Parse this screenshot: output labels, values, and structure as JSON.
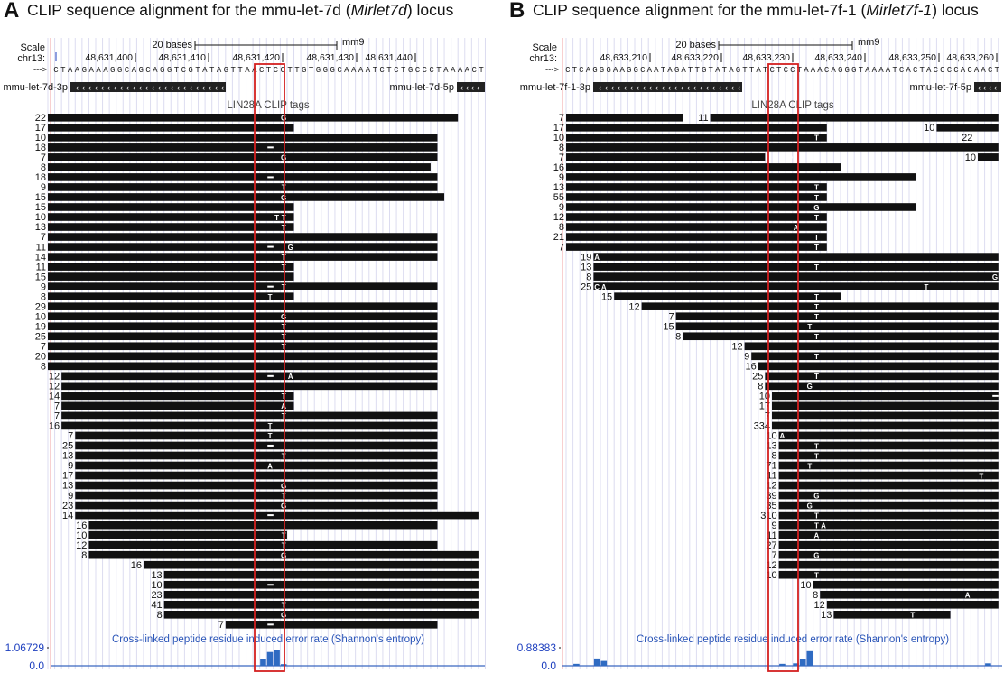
{
  "panels": [
    {
      "letter": "A",
      "title_pre": "CLIP sequence alignment for the mmu-let-7d (",
      "title_gene": "Mirlet7d",
      "title_post": ") locus",
      "scale_label": "Scale",
      "chrom_label": "chr13:",
      "bases_label": "20 bases",
      "assembly": "mm9",
      "positions": [
        "48,631,400",
        "48,631,410",
        "48,631,420",
        "48,631,430",
        "48,631,440"
      ],
      "sequence": "CTAAGAAAGGCAGCAGGTCGTATAGTTAACTCCTTGTGGGCAAAATCTCTGCCCTAAAACT",
      "gene_left": "mmu-let-7d-3p",
      "gene_right": "mmu-let-7d-5p",
      "track_title": "LIN28A CLIP tags",
      "entropy_max": "1.06729",
      "entropy_min": "0.0",
      "entropy_title": "Cross-linked peptide residue induced error rate (Shannon's entropy)",
      "reads": [
        {
          "n": "22",
          "s": 0,
          "e": 60,
          "m": [
            [
              34,
              "G"
            ]
          ]
        },
        {
          "n": "17",
          "s": 0,
          "e": 36,
          "m": []
        },
        {
          "n": "10",
          "s": 0,
          "e": 57,
          "m": []
        },
        {
          "n": "18",
          "s": 0,
          "e": 57,
          "m": [
            [
              32,
              "-"
            ]
          ]
        },
        {
          "n": "7",
          "s": 0,
          "e": 57,
          "m": [
            [
              34,
              "G"
            ]
          ]
        },
        {
          "n": "8",
          "s": 0,
          "e": 56,
          "m": []
        },
        {
          "n": "18",
          "s": 0,
          "e": 57,
          "m": [
            [
              32,
              "-"
            ]
          ]
        },
        {
          "n": "9",
          "s": 0,
          "e": 57,
          "m": [
            [
              34,
              "T"
            ]
          ]
        },
        {
          "n": "15",
          "s": 0,
          "e": 58,
          "m": [
            [
              34,
              "G"
            ]
          ]
        },
        {
          "n": "15",
          "s": 0,
          "e": 36,
          "m": []
        },
        {
          "n": "10",
          "s": 0,
          "e": 36,
          "m": [
            [
              33,
              "T"
            ],
            [
              34,
              "T"
            ]
          ]
        },
        {
          "n": "13",
          "s": 0,
          "e": 36,
          "m": [
            [
              34,
              "T"
            ]
          ]
        },
        {
          "n": "7",
          "s": 0,
          "e": 57,
          "m": []
        },
        {
          "n": "11",
          "s": 0,
          "e": 57,
          "m": [
            [
              32,
              "-"
            ],
            [
              35,
              "G"
            ]
          ]
        },
        {
          "n": "14",
          "s": 0,
          "e": 57,
          "m": [
            [
              34,
              "T"
            ]
          ]
        },
        {
          "n": "11",
          "s": 0,
          "e": 36,
          "m": [
            [
              34,
              "T"
            ]
          ]
        },
        {
          "n": "15",
          "s": 0,
          "e": 36,
          "m": []
        },
        {
          "n": "9",
          "s": 0,
          "e": 57,
          "m": [
            [
              32,
              "-"
            ],
            [
              34,
              "T"
            ]
          ]
        },
        {
          "n": "8",
          "s": 0,
          "e": 36,
          "m": [
            [
              32,
              "T"
            ]
          ]
        },
        {
          "n": "29",
          "s": 0,
          "e": 57,
          "m": []
        },
        {
          "n": "10",
          "s": 0,
          "e": 57,
          "m": [
            [
              34,
              "G"
            ]
          ]
        },
        {
          "n": "19",
          "s": 0,
          "e": 57,
          "m": [
            [
              34,
              "T"
            ]
          ]
        },
        {
          "n": "25",
          "s": 0,
          "e": 57,
          "m": [
            [
              34,
              "T"
            ]
          ]
        },
        {
          "n": "7",
          "s": 0,
          "e": 57,
          "m": [
            [
              34,
              "T"
            ]
          ]
        },
        {
          "n": "20",
          "s": 0,
          "e": 57,
          "m": []
        },
        {
          "n": "8",
          "s": 0,
          "e": 57,
          "m": []
        },
        {
          "n": "12",
          "s": 2,
          "e": 57,
          "m": [
            [
              32,
              "-"
            ],
            [
              35,
              "A"
            ]
          ]
        },
        {
          "n": "12",
          "s": 2,
          "e": 57,
          "m": []
        },
        {
          "n": "14",
          "s": 2,
          "e": 36,
          "m": [
            [
              34,
              "T"
            ]
          ]
        },
        {
          "n": "7",
          "s": 2,
          "e": 36,
          "m": [
            [
              34,
              "A"
            ]
          ]
        },
        {
          "n": "7",
          "s": 2,
          "e": 57,
          "m": [
            [
              34,
              "T"
            ]
          ]
        },
        {
          "n": "16",
          "s": 2,
          "e": 57,
          "m": [
            [
              32,
              "T"
            ]
          ]
        },
        {
          "n": "7",
          "s": 4,
          "e": 57,
          "m": [
            [
              32,
              "T"
            ]
          ]
        },
        {
          "n": "25",
          "s": 4,
          "e": 57,
          "m": [
            [
              32,
              "-"
            ]
          ]
        },
        {
          "n": "13",
          "s": 4,
          "e": 57,
          "m": [
            [
              34,
              "T"
            ]
          ]
        },
        {
          "n": "9",
          "s": 4,
          "e": 57,
          "m": [
            [
              32,
              "A"
            ]
          ]
        },
        {
          "n": "17",
          "s": 4,
          "e": 57,
          "m": []
        },
        {
          "n": "13",
          "s": 4,
          "e": 57,
          "m": [
            [
              34,
              "G"
            ]
          ]
        },
        {
          "n": "9",
          "s": 4,
          "e": 57,
          "m": [
            [
              34,
              "T"
            ]
          ]
        },
        {
          "n": "23",
          "s": 4,
          "e": 57,
          "m": [
            [
              34,
              "G"
            ]
          ]
        },
        {
          "n": "14",
          "s": 4,
          "e": 63,
          "m": [
            [
              32,
              "-"
            ]
          ]
        },
        {
          "n": "16",
          "s": 6,
          "e": 57,
          "m": []
        },
        {
          "n": "10",
          "s": 6,
          "e": 35,
          "m": [
            [
              34,
              "T"
            ]
          ]
        },
        {
          "n": "12",
          "s": 6,
          "e": 57,
          "m": [
            [
              34,
              "T"
            ]
          ]
        },
        {
          "n": "8",
          "s": 6,
          "e": 63,
          "m": [
            [
              34,
              "G"
            ]
          ]
        },
        {
          "n": "16",
          "s": 14,
          "e": 63,
          "m": []
        },
        {
          "n": "13",
          "s": 17,
          "e": 63,
          "m": []
        },
        {
          "n": "10",
          "s": 17,
          "e": 63,
          "m": [
            [
              32,
              "-"
            ]
          ]
        },
        {
          "n": "23",
          "s": 17,
          "e": 63,
          "m": []
        },
        {
          "n": "41",
          "s": 17,
          "e": 63,
          "m": [
            [
              34,
              "T"
            ]
          ]
        },
        {
          "n": "8",
          "s": 17,
          "e": 63,
          "m": [
            [
              34,
              "G"
            ]
          ]
        },
        {
          "n": "7",
          "s": 26,
          "e": 57,
          "m": [
            [
              32,
              "-"
            ]
          ]
        }
      ],
      "entropy": [
        [
          31,
          0.4
        ],
        [
          32,
          0.85
        ],
        [
          33,
          1.0
        ],
        [
          34,
          0.1
        ]
      ]
    },
    {
      "letter": "B",
      "title_pre": "CLIP sequence alignment for the mmu-let-7f-1 (",
      "title_gene": "Mirlet7f-1",
      "title_post": ") locus",
      "scale_label": "Scale",
      "chrom_label": "chr13:",
      "bases_label": "20 bases",
      "assembly": "mm9",
      "positions": [
        "48,633,210",
        "48,633,220",
        "48,633,230",
        "48,633,240",
        "48,633,250",
        "48,633,260"
      ],
      "sequence": "CTCAGGGAAGGCAATAGATTGTATAGTTATCTCCTAAACAGGGTAAAATCACTACCCCACAACT",
      "gene_left": "mmu-let-7f-1-3p",
      "gene_right": "mmu-let-7f-5p",
      "track_title": "LIN28A CLIP tags",
      "entropy_max": "0.88383",
      "entropy_min": "0.0",
      "entropy_title": "Cross-linked peptide residue induced error rate (Shannon's entropy)",
      "reads": [
        {
          "n": "7",
          "s": 0,
          "e": 17,
          "m": []
        },
        {
          "n": "17",
          "s": 0,
          "e": 38,
          "m": [
            [
              58,
              "A"
            ]
          ]
        },
        {
          "n": "10",
          "s": 0,
          "e": 38,
          "m": [
            [
              36,
              "T"
            ]
          ]
        },
        {
          "n": "8",
          "s": 0,
          "e": 63,
          "m": []
        },
        {
          "n": "7",
          "s": 0,
          "e": 29,
          "m": [
            [
              32,
              "-"
            ]
          ]
        },
        {
          "n": "16",
          "s": 0,
          "e": 40,
          "m": []
        },
        {
          "n": "9",
          "s": 0,
          "e": 51,
          "m": []
        },
        {
          "n": "13",
          "s": 0,
          "e": 38,
          "m": [
            [
              36,
              "T"
            ]
          ]
        },
        {
          "n": "55",
          "s": 0,
          "e": 38,
          "m": [
            [
              36,
              "T"
            ]
          ]
        },
        {
          "n": "9",
          "s": 0,
          "e": 51,
          "m": [
            [
              36,
              "G"
            ]
          ]
        },
        {
          "n": "12",
          "s": 0,
          "e": 38,
          "m": [
            [
              36,
              "T"
            ]
          ]
        },
        {
          "n": "8",
          "s": 0,
          "e": 38,
          "m": [
            [
              33,
              "A"
            ]
          ]
        },
        {
          "n": "21",
          "s": 0,
          "e": 38,
          "m": [
            [
              36,
              "T"
            ]
          ]
        },
        {
          "n": "7",
          "s": 0,
          "e": 38,
          "m": [
            [
              36,
              "T"
            ]
          ]
        },
        {
          "n": "19",
          "s": 4,
          "e": 63,
          "m": [
            [
              4,
              "A"
            ]
          ]
        },
        {
          "n": "13",
          "s": 4,
          "e": 63,
          "m": [
            [
              36,
              "T"
            ]
          ]
        },
        {
          "n": "8",
          "s": 4,
          "e": 63,
          "m": [
            [
              62,
              "G"
            ]
          ]
        },
        {
          "n": "25",
          "s": 4,
          "e": 63,
          "m": [
            [
              4,
              "C"
            ],
            [
              5,
              "A"
            ],
            [
              52,
              "T"
            ]
          ]
        },
        {
          "n": "15",
          "s": 7,
          "e": 40,
          "m": [
            [
              36,
              "T"
            ]
          ]
        },
        {
          "n": "12",
          "s": 11,
          "e": 63,
          "m": [
            [
              36,
              "T"
            ]
          ]
        },
        {
          "n": "7",
          "s": 16,
          "e": 63,
          "m": [
            [
              36,
              "T"
            ]
          ]
        },
        {
          "n": "15",
          "s": 16,
          "e": 63,
          "m": [
            [
              35,
              "T"
            ]
          ]
        },
        {
          "n": "8",
          "s": 17,
          "e": 63,
          "m": [
            [
              36,
              "T"
            ]
          ]
        },
        {
          "n": "12",
          "s": 26,
          "e": 63,
          "m": []
        },
        {
          "n": "9",
          "s": 27,
          "e": 63,
          "m": [
            [
              36,
              "T"
            ]
          ]
        },
        {
          "n": "16",
          "s": 28,
          "e": 63,
          "m": []
        },
        {
          "n": "25",
          "s": 29,
          "e": 63,
          "m": [
            [
              36,
              "T"
            ]
          ]
        },
        {
          "n": "8",
          "s": 29,
          "e": 63,
          "m": [
            [
              35,
              "G"
            ]
          ]
        },
        {
          "n": "10",
          "s": 30,
          "e": 63,
          "m": [
            [
              62,
              "-"
            ]
          ]
        },
        {
          "n": "17",
          "s": 30,
          "e": 63,
          "m": []
        },
        {
          "n": "7",
          "s": 30,
          "e": 63,
          "m": []
        },
        {
          "n": "334",
          "s": 30,
          "e": 63,
          "m": []
        },
        {
          "n": "10",
          "s": 31,
          "e": 63,
          "m": [
            [
              31,
              "A"
            ]
          ]
        },
        {
          "n": "13",
          "s": 31,
          "e": 63,
          "m": [
            [
              36,
              "T"
            ]
          ]
        },
        {
          "n": "8",
          "s": 31,
          "e": 63,
          "m": [
            [
              36,
              "T"
            ]
          ]
        },
        {
          "n": "71",
          "s": 31,
          "e": 63,
          "m": [
            [
              35,
              "T"
            ]
          ]
        },
        {
          "n": "11",
          "s": 31,
          "e": 63,
          "m": [
            [
              60,
              "T"
            ]
          ]
        },
        {
          "n": "12",
          "s": 31,
          "e": 63,
          "m": []
        },
        {
          "n": "39",
          "s": 31,
          "e": 63,
          "m": [
            [
              36,
              "G"
            ]
          ]
        },
        {
          "n": "35",
          "s": 31,
          "e": 63,
          "m": [
            [
              35,
              "G"
            ]
          ]
        },
        {
          "n": "310",
          "s": 31,
          "e": 63,
          "m": [
            [
              36,
              "T"
            ]
          ]
        },
        {
          "n": "9",
          "s": 31,
          "e": 63,
          "m": [
            [
              36,
              "T"
            ],
            [
              37,
              "A"
            ]
          ]
        },
        {
          "n": "11",
          "s": 31,
          "e": 63,
          "m": [
            [
              36,
              "A"
            ]
          ]
        },
        {
          "n": "27",
          "s": 31,
          "e": 63,
          "m": []
        },
        {
          "n": "7",
          "s": 31,
          "e": 63,
          "m": [
            [
              36,
              "G"
            ]
          ]
        },
        {
          "n": "12",
          "s": 31,
          "e": 63,
          "m": []
        },
        {
          "n": "10",
          "s": 31,
          "e": 63,
          "m": [
            [
              36,
              "T"
            ]
          ]
        },
        {
          "n": "10",
          "s": 36,
          "e": 63,
          "m": []
        },
        {
          "n": "8",
          "s": 37,
          "e": 63,
          "m": [
            [
              58,
              "A"
            ]
          ]
        },
        {
          "n": "12",
          "s": 38,
          "e": 63,
          "m": []
        },
        {
          "n": "13",
          "s": 39,
          "e": 56,
          "m": [
            [
              50,
              "T"
            ]
          ]
        }
      ],
      "extra_reads": [
        {
          "n": "11",
          "row": 0,
          "s": 21,
          "e": 63
        },
        {
          "n": "10",
          "row": 1,
          "s": 54,
          "e": 63
        },
        {
          "n": "22",
          "row": 2,
          "s": 54,
          "e": 63,
          "nolabelbar": true
        },
        {
          "n": "10",
          "row": 4,
          "s": 60,
          "e": 63
        }
      ],
      "entropy": [
        [
          1,
          0.12
        ],
        [
          4,
          0.45
        ],
        [
          5,
          0.3
        ],
        [
          31,
          0.12
        ],
        [
          33,
          0.15
        ],
        [
          34,
          0.4
        ],
        [
          35,
          0.9
        ],
        [
          61,
          0.15
        ]
      ]
    }
  ]
}
